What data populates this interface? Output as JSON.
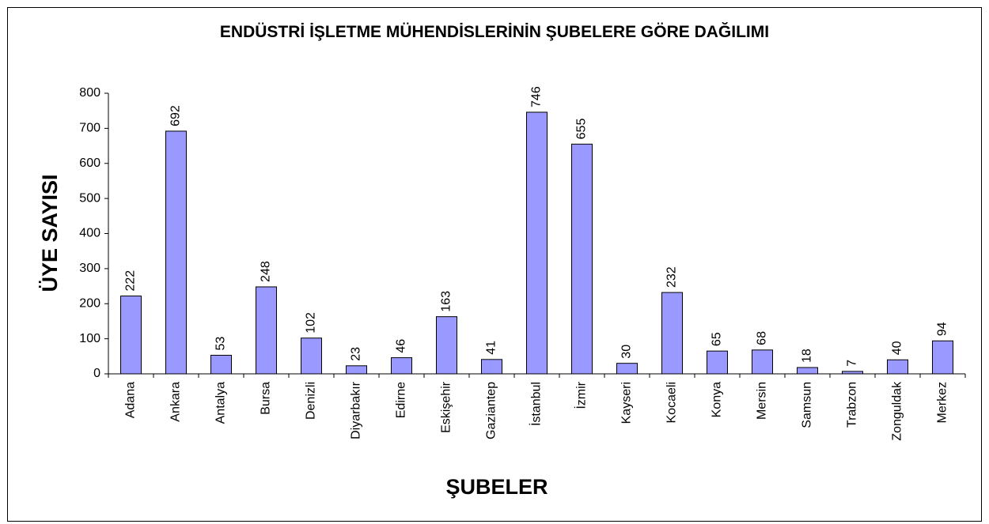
{
  "chart_data": {
    "type": "bar",
    "title": "ENDÜSTRİ İŞLETME MÜHENDİSLERİNİN ŞUBELERE GÖRE DAĞILIMI",
    "x_label": "ŞUBELER",
    "y_label": "ÜYE SAYISI",
    "categories": [
      "Adana",
      "Ankara",
      "Antalya",
      "Bursa",
      "Denizli",
      "Diyarbakır",
      "Edirne",
      "Eskişehir",
      "Gaziantep",
      "İstanbul",
      "İzmir",
      "Kayseri",
      "Kocaeli",
      "Konya",
      "Mersin",
      "Samsun",
      "Trabzon",
      "Zonguldak",
      "Merkez"
    ],
    "values": [
      222,
      692,
      53,
      248,
      102,
      23,
      46,
      163,
      41,
      746,
      655,
      30,
      232,
      65,
      68,
      18,
      7,
      40,
      94
    ],
    "color": "#9999ff",
    "ylim": [
      0,
      800
    ],
    "yticks": [
      0,
      100,
      200,
      300,
      400,
      500,
      600,
      700,
      800
    ]
  }
}
